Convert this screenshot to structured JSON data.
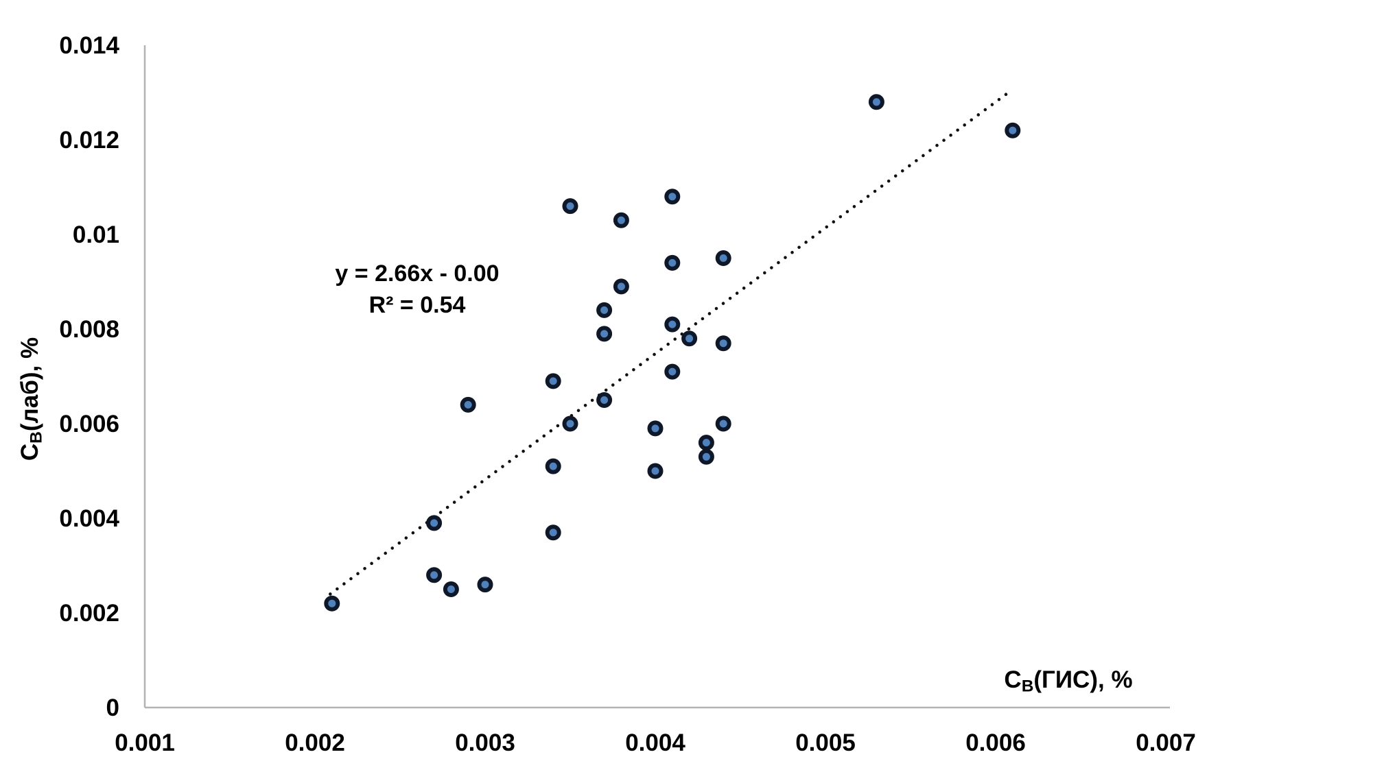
{
  "chart_data": {
    "type": "scatter",
    "title": "",
    "grid": false,
    "legend_position": "none",
    "x_axis": {
      "label": "Cв(ГИС), %",
      "label_parts": {
        "base": "C",
        "subscript": "В",
        "rest": "(ГИС), %"
      },
      "min": 0.001,
      "max": 0.007,
      "tick_values": [
        0.001,
        0.002,
        0.003,
        0.004,
        0.005,
        0.006,
        0.007
      ],
      "tick_labels": [
        "0.001",
        "0.002",
        "0.003",
        "0.004",
        "0.005",
        "0.006",
        "0.007"
      ]
    },
    "y_axis": {
      "label": "Cв(лаб), %",
      "label_parts": {
        "base": "C",
        "subscript": "В",
        "rest": "(лаб), %"
      },
      "min": 0,
      "max": 0.014,
      "tick_values": [
        0,
        0.002,
        0.004,
        0.006,
        0.008,
        0.01,
        0.012,
        0.014
      ],
      "tick_labels": [
        "0",
        "0.002",
        "0.004",
        "0.006",
        "0.008",
        "0.01",
        "0.012",
        "0.014"
      ]
    },
    "points": [
      {
        "x": 0.0021,
        "y": 0.0022
      },
      {
        "x": 0.0027,
        "y": 0.0028
      },
      {
        "x": 0.0028,
        "y": 0.0025
      },
      {
        "x": 0.003,
        "y": 0.0026
      },
      {
        "x": 0.0027,
        "y": 0.0039
      },
      {
        "x": 0.0029,
        "y": 0.0064
      },
      {
        "x": 0.0034,
        "y": 0.0037
      },
      {
        "x": 0.0034,
        "y": 0.0051
      },
      {
        "x": 0.0034,
        "y": 0.0069
      },
      {
        "x": 0.0035,
        "y": 0.006
      },
      {
        "x": 0.0035,
        "y": 0.0106
      },
      {
        "x": 0.0037,
        "y": 0.0065
      },
      {
        "x": 0.0037,
        "y": 0.0079
      },
      {
        "x": 0.0037,
        "y": 0.0084
      },
      {
        "x": 0.0038,
        "y": 0.0089
      },
      {
        "x": 0.0038,
        "y": 0.0103
      },
      {
        "x": 0.004,
        "y": 0.005
      },
      {
        "x": 0.004,
        "y": 0.0059
      },
      {
        "x": 0.0041,
        "y": 0.0071
      },
      {
        "x": 0.0041,
        "y": 0.0081
      },
      {
        "x": 0.0041,
        "y": 0.0094
      },
      {
        "x": 0.0041,
        "y": 0.0108
      },
      {
        "x": 0.0042,
        "y": 0.0078
      },
      {
        "x": 0.0043,
        "y": 0.0053
      },
      {
        "x": 0.0043,
        "y": 0.0056
      },
      {
        "x": 0.0044,
        "y": 0.006
      },
      {
        "x": 0.0044,
        "y": 0.0077
      },
      {
        "x": 0.0044,
        "y": 0.0095
      },
      {
        "x": 0.0053,
        "y": 0.0128
      },
      {
        "x": 0.0061,
        "y": 0.0122
      }
    ],
    "trendline": {
      "type": "linear",
      "line_style": "dotted",
      "slope": 2.66,
      "intercept": -0.00316,
      "x_start": 0.00209,
      "x_end": 0.00608,
      "equation_text": "y = 2.66x - 0.00",
      "r2_text": "R² = 0.54"
    },
    "marker": {
      "shape": "circle",
      "fill": "#4f81bd",
      "outline": "#0f1828"
    },
    "colors": {
      "trendline": "#111111",
      "axis_line": "#b3b3b3",
      "text": "#000000",
      "background": "#ffffff"
    }
  }
}
